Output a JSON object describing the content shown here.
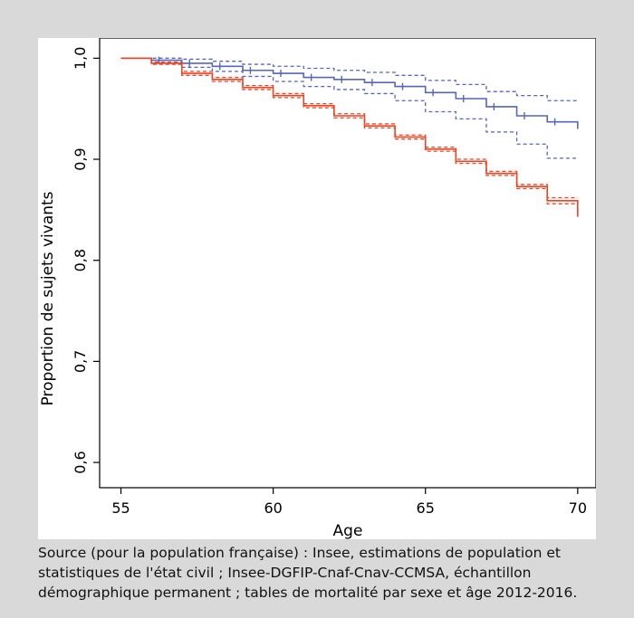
{
  "chart_data": {
    "type": "line",
    "title": "",
    "xlabel": "Age",
    "ylabel": "Proportion de sujets vivants",
    "xlim": [
      54.3,
      70.6
    ],
    "ylim": [
      0.575,
      1.02
    ],
    "xticks": [
      55,
      60,
      65,
      70
    ],
    "yticks": [
      0.6,
      0.7,
      0.8,
      0.9,
      1.0
    ],
    "ytick_labels": [
      "0,6",
      "0,7",
      "0,8",
      "0,9",
      "1,0"
    ],
    "step": true,
    "grid": false,
    "legend": "none",
    "series": [
      {
        "role": "estimate",
        "color": "#5566bb",
        "dashed": false,
        "censor_marks": true,
        "x": [
          55,
          56,
          57,
          58,
          59,
          60,
          61,
          62,
          63,
          64,
          65,
          66,
          67,
          68,
          69,
          70
        ],
        "y": [
          1.0,
          0.998,
          0.995,
          0.992,
          0.988,
          0.985,
          0.981,
          0.979,
          0.976,
          0.972,
          0.966,
          0.96,
          0.952,
          0.943,
          0.937,
          0.93
        ]
      },
      {
        "role": "upper_ci",
        "color": "#5566bb",
        "dashed": true,
        "censor_marks": false,
        "x": [
          55,
          56,
          57,
          58,
          59,
          60,
          61,
          62,
          63,
          64,
          65,
          66,
          67,
          68,
          69,
          70
        ],
        "y": [
          1.0,
          1.0,
          0.999,
          0.997,
          0.994,
          0.992,
          0.99,
          0.988,
          0.986,
          0.983,
          0.978,
          0.974,
          0.967,
          0.963,
          0.958,
          0.958
        ]
      },
      {
        "role": "lower_ci",
        "color": "#5566bb",
        "dashed": true,
        "censor_marks": false,
        "x": [
          55,
          56,
          57,
          58,
          59,
          60,
          61,
          62,
          63,
          64,
          65,
          66,
          67,
          68,
          69,
          70
        ],
        "y": [
          1.0,
          0.996,
          0.991,
          0.987,
          0.982,
          0.977,
          0.972,
          0.969,
          0.965,
          0.958,
          0.947,
          0.94,
          0.927,
          0.915,
          0.901,
          0.901
        ]
      },
      {
        "role": "estimate",
        "color": "#ee4422",
        "dashed": false,
        "censor_marks": false,
        "x": [
          55,
          56,
          57,
          58,
          59,
          60,
          61,
          62,
          63,
          64,
          65,
          66,
          67,
          68,
          69,
          70
        ],
        "y": [
          1.0,
          0.995,
          0.985,
          0.979,
          0.971,
          0.963,
          0.953,
          0.943,
          0.933,
          0.922,
          0.91,
          0.898,
          0.886,
          0.873,
          0.859,
          0.843
        ]
      },
      {
        "role": "upper_ci",
        "color": "#ee4422",
        "dashed": true,
        "censor_marks": false,
        "x": [
          55,
          56,
          57,
          58,
          59,
          60,
          61,
          62,
          63,
          64,
          65,
          66,
          67,
          68,
          69,
          70
        ],
        "y": [
          1.0,
          0.996,
          0.987,
          0.981,
          0.973,
          0.965,
          0.955,
          0.945,
          0.935,
          0.924,
          0.912,
          0.9,
          0.888,
          0.875,
          0.862,
          0.862
        ]
      },
      {
        "role": "lower_ci",
        "color": "#ee4422",
        "dashed": true,
        "censor_marks": false,
        "x": [
          55,
          56,
          57,
          58,
          59,
          60,
          61,
          62,
          63,
          64,
          65,
          66,
          67,
          68,
          69,
          70
        ],
        "y": [
          1.0,
          0.994,
          0.983,
          0.977,
          0.969,
          0.961,
          0.951,
          0.941,
          0.931,
          0.92,
          0.908,
          0.896,
          0.884,
          0.871,
          0.856,
          0.856
        ]
      }
    ]
  },
  "source_lines": [
    "Source (pour la population française) : Insee, estimations de population et",
    "statistiques de l'état civil ; Insee-DGFIP-Cnaf-Cnav-CCMSA, échantillon",
    "démographique permanent ; tables de mortalité par sexe et âge 2012-2016."
  ]
}
